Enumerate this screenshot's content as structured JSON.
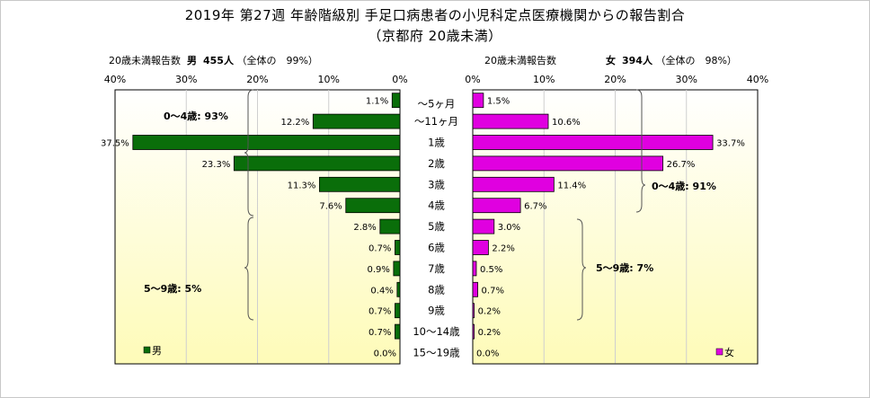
{
  "header": {
    "title": "2019年 第27週 年齢階級別 手足口病患者の小児科定点医療機関からの報告割合",
    "subtitle": "（京都府 20歳未満）"
  },
  "left_panel": {
    "caption_prefix": "20歳未満報告数",
    "sex": "男",
    "count": "455人",
    "share": "（全体の　99%）",
    "legend": "男",
    "bracket_upper": "0～4歳: 93%",
    "bracket_lower": "5～9歳: 5%"
  },
  "right_panel": {
    "caption_prefix": "20歳未満報告数",
    "sex": "女",
    "count": "394人",
    "share": "（全体の　98%）",
    "legend": "女",
    "bracket_upper": "0～4歳: 91%",
    "bracket_lower": "5～9歳: 7%"
  },
  "colors": {
    "male": "#0a6e0a",
    "female": "#e000e0",
    "bar_stroke": "#000000",
    "bg_top": "#ffffff",
    "bg_bottom": "#fefbb8"
  },
  "chart_data": {
    "type": "bar",
    "orientation": "horizontal",
    "categories": [
      "～5ヶ月",
      "～11ヶ月",
      "1歳",
      "2歳",
      "3歳",
      "4歳",
      "5歳",
      "6歳",
      "7歳",
      "8歳",
      "9歳",
      "10～14歳",
      "15～19歳"
    ],
    "series": [
      {
        "name": "男",
        "values": [
          1.1,
          12.2,
          37.5,
          23.3,
          11.3,
          7.6,
          2.8,
          0.7,
          0.9,
          0.4,
          0.7,
          0.7,
          0.0
        ]
      },
      {
        "name": "女",
        "values": [
          1.5,
          10.6,
          33.7,
          26.7,
          11.4,
          6.7,
          3.0,
          2.2,
          0.5,
          0.7,
          0.2,
          0.2,
          0.0
        ]
      }
    ],
    "value_labels": {
      "男": [
        "1.1%",
        "12.2%",
        "37.5%",
        "23.3%",
        "11.3%",
        "7.6%",
        "2.8%",
        "0.7%",
        "0.9%",
        "0.4%",
        "0.7%",
        "0.7%",
        "0.0%"
      ],
      "女": [
        "1.5%",
        "10.6%",
        "33.7%",
        "26.7%",
        "11.4%",
        "6.7%",
        "3.0%",
        "2.2%",
        "0.5%",
        "0.7%",
        "0.2%",
        "0.2%",
        "0.0%"
      ]
    },
    "xlim": [
      0,
      40
    ],
    "x_ticks": [
      "40%",
      "30%",
      "20%",
      "10%",
      "0%"
    ],
    "x_ticks_right": [
      "0%",
      "10%",
      "20%",
      "30%",
      "40%"
    ],
    "grid": true,
    "legend_position": "bottom-left / bottom-right"
  }
}
